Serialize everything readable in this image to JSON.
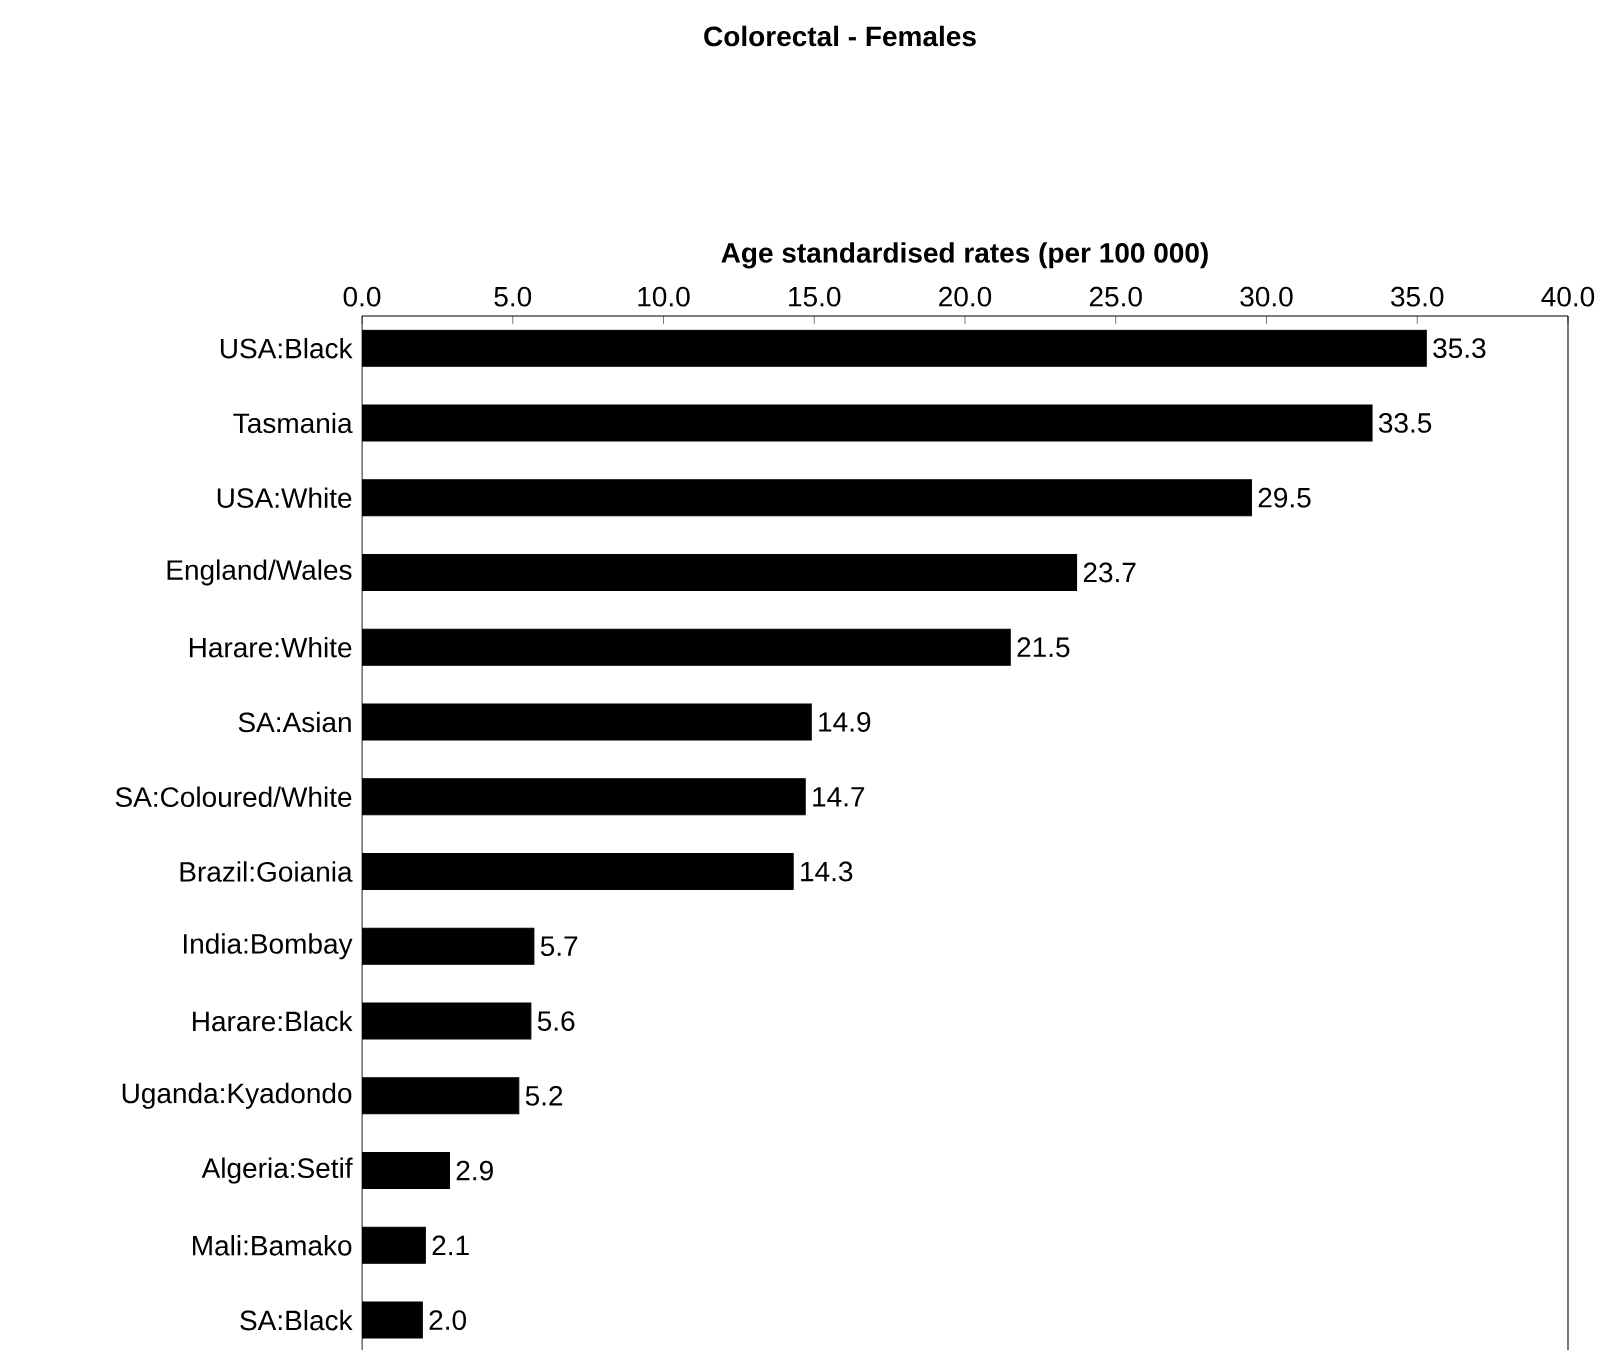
{
  "chart_data": {
    "type": "bar",
    "orientation": "horizontal",
    "title": "Colorectal - Females",
    "xlabel": "Age standardised rates (per 100 000)",
    "categories": [
      "USA:Black",
      "Tasmania",
      "USA:White",
      "England/Wales",
      "Harare:White",
      "SA:Asian",
      "SA:Coloured/White",
      "Brazil:Goiania",
      "India:Bombay",
      "Harare:Black",
      "Uganda:Kyadondo",
      "Algeria:Setif",
      "Mali:Bamako",
      "SA:Black"
    ],
    "values": [
      35.3,
      33.5,
      29.5,
      23.7,
      21.5,
      14.9,
      14.7,
      14.3,
      5.7,
      5.6,
      5.2,
      2.9,
      2.1,
      2.0
    ],
    "value_labels": [
      "35.3",
      "33.5",
      "29.5",
      "23.7",
      "21.5",
      "14.9",
      "14.7",
      "14.3",
      "5.7",
      "5.6",
      "5.2",
      "2.9",
      "2.1",
      "2.0"
    ],
    "color": "#000000",
    "xlim": [
      0,
      40
    ],
    "xticks": [
      {
        "value": 0,
        "label": "0.0"
      },
      {
        "value": 5,
        "label": "5.0"
      },
      {
        "value": 10,
        "label": "10.0"
      },
      {
        "value": 15,
        "label": "15.0"
      },
      {
        "value": 20,
        "label": "20.0"
      },
      {
        "value": 25,
        "label": "25.0"
      },
      {
        "value": 30,
        "label": "30.0"
      },
      {
        "value": 35,
        "label": "35.0"
      },
      {
        "value": 40,
        "label": "40.0"
      }
    ]
  }
}
